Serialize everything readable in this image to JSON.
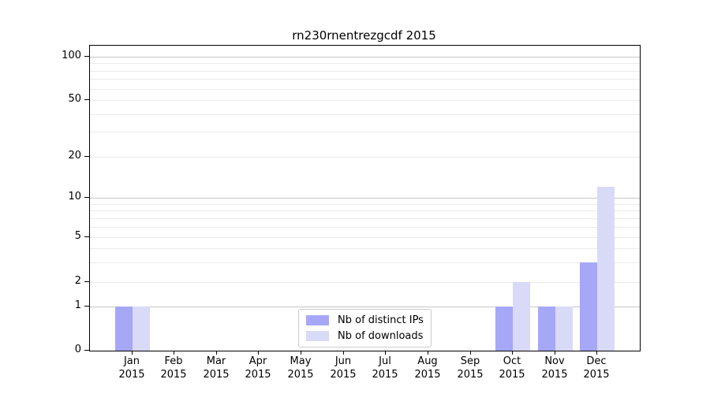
{
  "title": "rn230rnentrezgcdf 2015",
  "chart_data": {
    "type": "bar",
    "title": "rn230rnentrezgcdf 2015",
    "categories": [
      "Jan",
      "Feb",
      "Mar",
      "Apr",
      "May",
      "Jun",
      "Jul",
      "Aug",
      "Sep",
      "Oct",
      "Nov",
      "Dec"
    ],
    "category_year": "2015",
    "series": [
      {
        "name": "Nb of distinct IPs",
        "color": "#a7a7f7",
        "values": [
          1,
          0,
          0,
          0,
          0,
          0,
          0,
          0,
          0,
          1,
          1,
          3
        ]
      },
      {
        "name": "Nb of downloads",
        "color": "#d9d9f8",
        "values": [
          1,
          0,
          0,
          0,
          0,
          0,
          0,
          0,
          0,
          2,
          1,
          12
        ]
      }
    ],
    "yticks": [
      0,
      1,
      2,
      5,
      10,
      20,
      50,
      100
    ],
    "xlabel": "",
    "ylabel": "",
    "yscale": "symlog",
    "ylim": [
      0,
      130
    ],
    "grid": "horizontal",
    "legend_position": "lower center"
  },
  "colors": {
    "major_grid": "#c6c6c6",
    "minor_grid": "#ebebeb",
    "axis": "#000000",
    "background": "#ffffff"
  }
}
